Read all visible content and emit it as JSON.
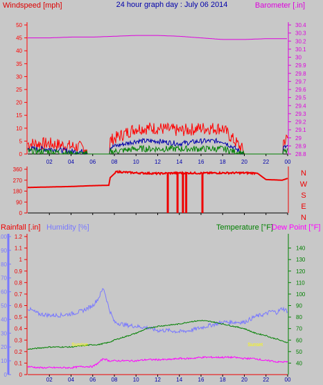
{
  "title": "24 hour graph day : July 06 2014",
  "colors": {
    "background": "#c8c8c8",
    "wind_avg": "#0000aa",
    "wind_gust": "#ff0000",
    "wind_low": "#008000",
    "barometer": "#dd00dd",
    "direction": "#ee0000",
    "rain": "#ee0000",
    "humidity": "#7878ff",
    "temperature": "#008000",
    "dew_point": "#ff00ff",
    "marker": "#ffff00"
  },
  "x_ticks": [
    "02",
    "04",
    "06",
    "08",
    "10",
    "12",
    "14",
    "16",
    "18",
    "20",
    "22",
    "00"
  ],
  "chart_data": [
    {
      "type": "line",
      "name": "wind_barometer",
      "left_axis_label": "Windspeed [mph]",
      "right_axis_label": "Barometer [.in]",
      "left_ticks": [
        "0",
        "5",
        "10",
        "15",
        "20",
        "25",
        "30",
        "35",
        "40",
        "45",
        "50"
      ],
      "right_ticks": [
        "28.8",
        "28.9",
        "29",
        "29.1",
        "29.2",
        "29.3",
        "29.4",
        "29.5",
        "29.6",
        "29.7",
        "29.8",
        "29.9",
        "30",
        "30.1",
        "30.2",
        "30.3",
        "30.4"
      ],
      "ylim_left": [
        0,
        50
      ],
      "ylim_right": [
        28.8,
        30.4
      ],
      "x_hours": [
        0,
        2,
        4,
        6,
        8,
        10,
        12,
        14,
        16,
        18,
        20,
        22,
        24
      ],
      "series": [
        {
          "key": "gust",
          "values": [
            4,
            4,
            3,
            2,
            6,
            10,
            10,
            9,
            10,
            10,
            1,
            1,
            6
          ]
        },
        {
          "key": "avg",
          "values": [
            2,
            2,
            1,
            1,
            3,
            5,
            5,
            4,
            5,
            5,
            0,
            0,
            3
          ]
        },
        {
          "key": "low",
          "values": [
            1,
            1,
            0,
            0,
            1,
            2,
            2,
            2,
            2,
            2,
            0,
            0,
            1
          ]
        },
        {
          "key": "barometer",
          "values": [
            30.24,
            30.24,
            30.25,
            30.25,
            30.26,
            30.27,
            30.27,
            30.26,
            30.24,
            30.22,
            30.22,
            30.23,
            30.23
          ]
        }
      ]
    },
    {
      "type": "line",
      "name": "wind_direction",
      "left_ticks": [
        "0",
        "90",
        "180",
        "270",
        "360"
      ],
      "right_labels": [
        "N",
        "W",
        "S",
        "E",
        "N"
      ],
      "ylim": [
        0,
        360
      ],
      "x_hours": [
        0,
        2,
        4,
        6,
        7.5,
        7.6,
        8.2,
        10,
        12,
        14,
        16,
        18,
        20,
        21.2,
        22,
        23.5,
        24
      ],
      "values": [
        210,
        214,
        218,
        225,
        228,
        290,
        340,
        330,
        325,
        330,
        328,
        330,
        330,
        328,
        275,
        270,
        285
      ],
      "drops_to_zero_at": [
        12.9,
        13.8,
        14.3,
        14.6,
        16.1
      ]
    },
    {
      "type": "line",
      "name": "rain_humidity_temp_dew",
      "left_axis_labels": [
        "Rainfall [.in]",
        "Humidity [%]"
      ],
      "right_axis_labels": [
        "Temperature [°F]",
        "Dew Point [°F]"
      ],
      "rain_ticks": [
        "0",
        "0.1",
        "0.2",
        "0.3",
        "0.4",
        "0.5",
        "0.6",
        "0.7",
        "0.8",
        "0.9",
        "1",
        "1.1",
        "1.2"
      ],
      "humidity_ticks": [
        "0",
        "10",
        "20",
        "30",
        "40",
        "50",
        "60",
        "70",
        "80",
        "90",
        "100"
      ],
      "temp_ticks": [
        "40",
        "50",
        "60",
        "70",
        "80",
        "90",
        "100",
        "110",
        "120",
        "130",
        "140"
      ],
      "ylim_rain": [
        0,
        1.2
      ],
      "ylim_humidity": [
        0,
        100
      ],
      "ylim_temp": [
        30,
        150
      ],
      "x_hours": [
        0,
        1,
        2,
        3,
        4,
        5,
        6,
        6.5,
        7,
        7.5,
        8,
        9,
        10,
        11,
        12,
        13,
        14,
        15,
        16,
        17,
        18,
        19,
        20,
        21,
        22,
        22.5,
        23,
        23.5,
        24
      ],
      "series": [
        {
          "key": "humidity",
          "values": [
            48,
            44,
            43,
            43,
            44,
            46,
            50,
            55,
            63,
            48,
            38,
            36,
            35,
            34,
            32,
            32,
            31,
            32,
            34,
            36,
            38,
            38,
            38,
            42,
            44,
            46,
            45,
            48,
            46
          ]
        },
        {
          "key": "temperature",
          "values": [
            52,
            53,
            54,
            54,
            54,
            55,
            56,
            56,
            57,
            58,
            60,
            63,
            66,
            70,
            72,
            73,
            74,
            76,
            77,
            76,
            74,
            72,
            70,
            66,
            64,
            62,
            61,
            59,
            58
          ]
        },
        {
          "key": "dew_point",
          "values": [
            37,
            36,
            36,
            36,
            36,
            37,
            37,
            40,
            44,
            42,
            42,
            42,
            42,
            43,
            43,
            43,
            44,
            44,
            45,
            45,
            45,
            45,
            44,
            44,
            42,
            42,
            41,
            41,
            41
          ]
        },
        {
          "key": "rain",
          "values": [
            0,
            0,
            0,
            0,
            0,
            0,
            0,
            0,
            0,
            0,
            0,
            0,
            0,
            0,
            0,
            0,
            0,
            0,
            0,
            0,
            0,
            0,
            0,
            0,
            0,
            0,
            0,
            0,
            0
          ]
        }
      ],
      "markers": [
        {
          "x_hour": 4.8,
          "text": "Sunrise"
        },
        {
          "x_hour": 21.0,
          "text": "Sunset"
        }
      ]
    }
  ]
}
